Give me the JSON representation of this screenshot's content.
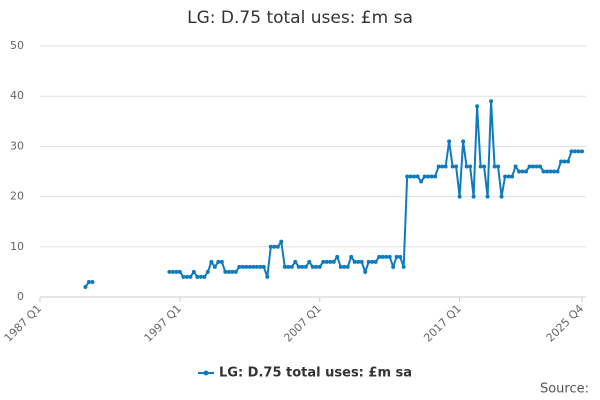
{
  "chart_data": {
    "type": "line",
    "title": "LG: D.75 total uses: £m sa",
    "source": "Source:",
    "categories": [
      "1987 Q1",
      null,
      null,
      null,
      null,
      null,
      null,
      null,
      null,
      null,
      null,
      null,
      null,
      null,
      null,
      null,
      null,
      null,
      null,
      null,
      null,
      null,
      null,
      null,
      null,
      null,
      null,
      null,
      null,
      null,
      null,
      null,
      null,
      null,
      null,
      null,
      null,
      null,
      null,
      null,
      "1997 Q1",
      null,
      null,
      null,
      null,
      null,
      null,
      null,
      null,
      null,
      null,
      null,
      null,
      null,
      null,
      null,
      null,
      null,
      null,
      null,
      null,
      null,
      null,
      null,
      null,
      null,
      null,
      null,
      null,
      null,
      null,
      null,
      null,
      null,
      null,
      null,
      null,
      null,
      null,
      null,
      "2007 Q1",
      null,
      null,
      null,
      null,
      null,
      null,
      null,
      null,
      null,
      null,
      null,
      null,
      null,
      null,
      null,
      null,
      null,
      null,
      null,
      null,
      null,
      null,
      null,
      null,
      null,
      null,
      null,
      null,
      null,
      null,
      null,
      null,
      null,
      null,
      null,
      null,
      null,
      null,
      null,
      "2017 Q1",
      null,
      null,
      null,
      null,
      null,
      null,
      null,
      null,
      null,
      null,
      null,
      null,
      null,
      null,
      null,
      null,
      null,
      null,
      null,
      null,
      null,
      null,
      null,
      null,
      null,
      null,
      null,
      null,
      null,
      null,
      null,
      null,
      null,
      null,
      "2025 Q4"
    ],
    "series": [
      {
        "name": "LG: D.75 total uses: £m sa",
        "color": "#0f7bbf",
        "values": [
          null,
          null,
          null,
          null,
          null,
          null,
          null,
          null,
          null,
          null,
          null,
          null,
          null,
          2,
          3,
          3,
          null,
          null,
          null,
          null,
          null,
          null,
          null,
          null,
          null,
          null,
          null,
          null,
          null,
          null,
          null,
          null,
          null,
          null,
          null,
          null,
          null,
          5,
          5,
          5,
          5,
          4,
          4,
          4,
          5,
          4,
          4,
          4,
          5,
          7,
          6,
          7,
          7,
          5,
          5,
          5,
          5,
          6,
          6,
          6,
          6,
          6,
          6,
          6,
          6,
          4,
          10,
          10,
          10,
          11,
          6,
          6,
          6,
          7,
          6,
          6,
          6,
          7,
          6,
          6,
          6,
          7,
          7,
          7,
          7,
          8,
          6,
          6,
          6,
          8,
          7,
          7,
          7,
          5,
          7,
          7,
          7,
          8,
          8,
          8,
          8,
          6,
          8,
          8,
          6,
          24,
          24,
          24,
          24,
          23,
          24,
          24,
          24,
          24,
          26,
          26,
          26,
          31,
          26,
          26,
          20,
          31,
          26,
          26,
          20,
          38,
          26,
          26,
          20,
          39,
          26,
          26,
          20,
          24,
          24,
          24,
          26,
          25,
          25,
          25,
          26,
          26,
          26,
          26,
          25,
          25,
          25,
          25,
          25,
          27,
          27,
          27,
          29,
          29,
          29,
          29
        ]
      }
    ],
    "ylim": [
      0,
      50
    ],
    "yticks": [
      0,
      10,
      20,
      30,
      40,
      50
    ],
    "grid": true
  }
}
